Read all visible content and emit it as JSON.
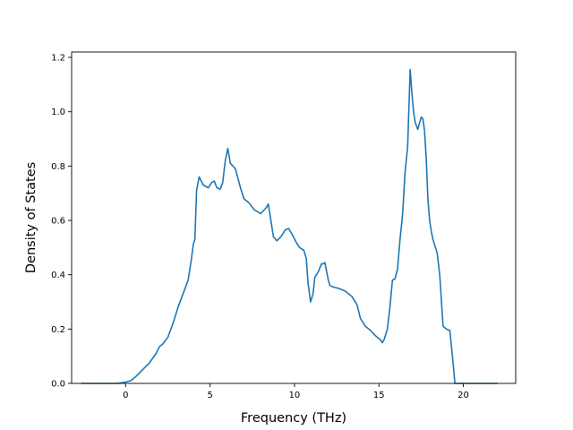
{
  "chart_data": {
    "type": "line",
    "title": "",
    "xlabel": "Frequency (THz)",
    "ylabel": "Density of States",
    "xlim": [
      -3.2,
      23.1
    ],
    "ylim": [
      0,
      1.22
    ],
    "grid": false,
    "legend": "none",
    "x_ticks": [
      0,
      5,
      10,
      15,
      20
    ],
    "y_ticks": [
      0.0,
      0.2,
      0.4,
      0.6,
      0.8,
      1.0,
      1.2
    ],
    "x_tick_labels": [
      "0",
      "5",
      "10",
      "15",
      "20"
    ],
    "y_tick_labels": [
      "0.0",
      "0.2",
      "0.4",
      "0.6",
      "0.8",
      "1.0",
      "1.2"
    ],
    "series": [
      {
        "color": "#1f77b4",
        "x": [
          -2.6,
          -1.0,
          -0.5,
          0.0,
          0.3,
          0.6,
          1.0,
          1.4,
          1.8,
          2.0,
          2.2,
          2.5,
          2.8,
          3.1,
          3.4,
          3.7,
          3.9,
          4.0,
          4.1,
          4.2,
          4.35,
          4.6,
          4.9,
          5.1,
          5.25,
          5.4,
          5.6,
          5.75,
          5.9,
          6.05,
          6.2,
          6.5,
          6.8,
          7.0,
          7.3,
          7.6,
          8.0,
          8.3,
          8.45,
          8.6,
          8.75,
          8.95,
          9.2,
          9.45,
          9.65,
          9.85,
          10.05,
          10.3,
          10.55,
          10.7,
          10.8,
          10.95,
          11.1,
          11.2,
          11.4,
          11.6,
          11.7,
          11.8,
          12.0,
          12.1,
          12.3,
          12.6,
          13.0,
          13.4,
          13.7,
          13.9,
          14.0,
          14.2,
          14.5,
          14.8,
          15.1,
          15.2,
          15.3,
          15.5,
          15.65,
          15.8,
          15.95,
          16.1,
          16.25,
          16.4,
          16.55,
          16.7,
          16.85,
          16.95,
          17.05,
          17.15,
          17.3,
          17.5,
          17.6,
          17.7,
          17.8,
          17.9,
          18.0,
          18.1,
          18.2,
          18.3,
          18.45,
          18.6,
          18.8,
          19.0,
          19.2,
          19.4,
          19.5,
          19.6,
          19.75,
          19.9,
          20.0,
          22.0
        ],
        "y": [
          0.0,
          0.0,
          0.0,
          0.005,
          0.01,
          0.025,
          0.05,
          0.075,
          0.11,
          0.135,
          0.145,
          0.17,
          0.22,
          0.28,
          0.33,
          0.38,
          0.46,
          0.51,
          0.53,
          0.71,
          0.76,
          0.73,
          0.72,
          0.74,
          0.745,
          0.72,
          0.715,
          0.74,
          0.82,
          0.865,
          0.81,
          0.79,
          0.72,
          0.68,
          0.665,
          0.64,
          0.625,
          0.645,
          0.66,
          0.6,
          0.54,
          0.525,
          0.54,
          0.565,
          0.57,
          0.55,
          0.525,
          0.5,
          0.49,
          0.46,
          0.37,
          0.3,
          0.33,
          0.39,
          0.41,
          0.44,
          0.44,
          0.445,
          0.38,
          0.36,
          0.355,
          0.35,
          0.34,
          0.32,
          0.29,
          0.24,
          0.23,
          0.21,
          0.195,
          0.175,
          0.16,
          0.15,
          0.16,
          0.2,
          0.28,
          0.38,
          0.385,
          0.42,
          0.53,
          0.62,
          0.78,
          0.87,
          1.155,
          1.07,
          1.0,
          0.96,
          0.935,
          0.98,
          0.975,
          0.93,
          0.83,
          0.68,
          0.6,
          0.56,
          0.53,
          0.51,
          0.48,
          0.4,
          0.21,
          0.2,
          0.195,
          0.07,
          0.0,
          0.0,
          0.0,
          0.0,
          0.0,
          0.0
        ]
      }
    ]
  }
}
